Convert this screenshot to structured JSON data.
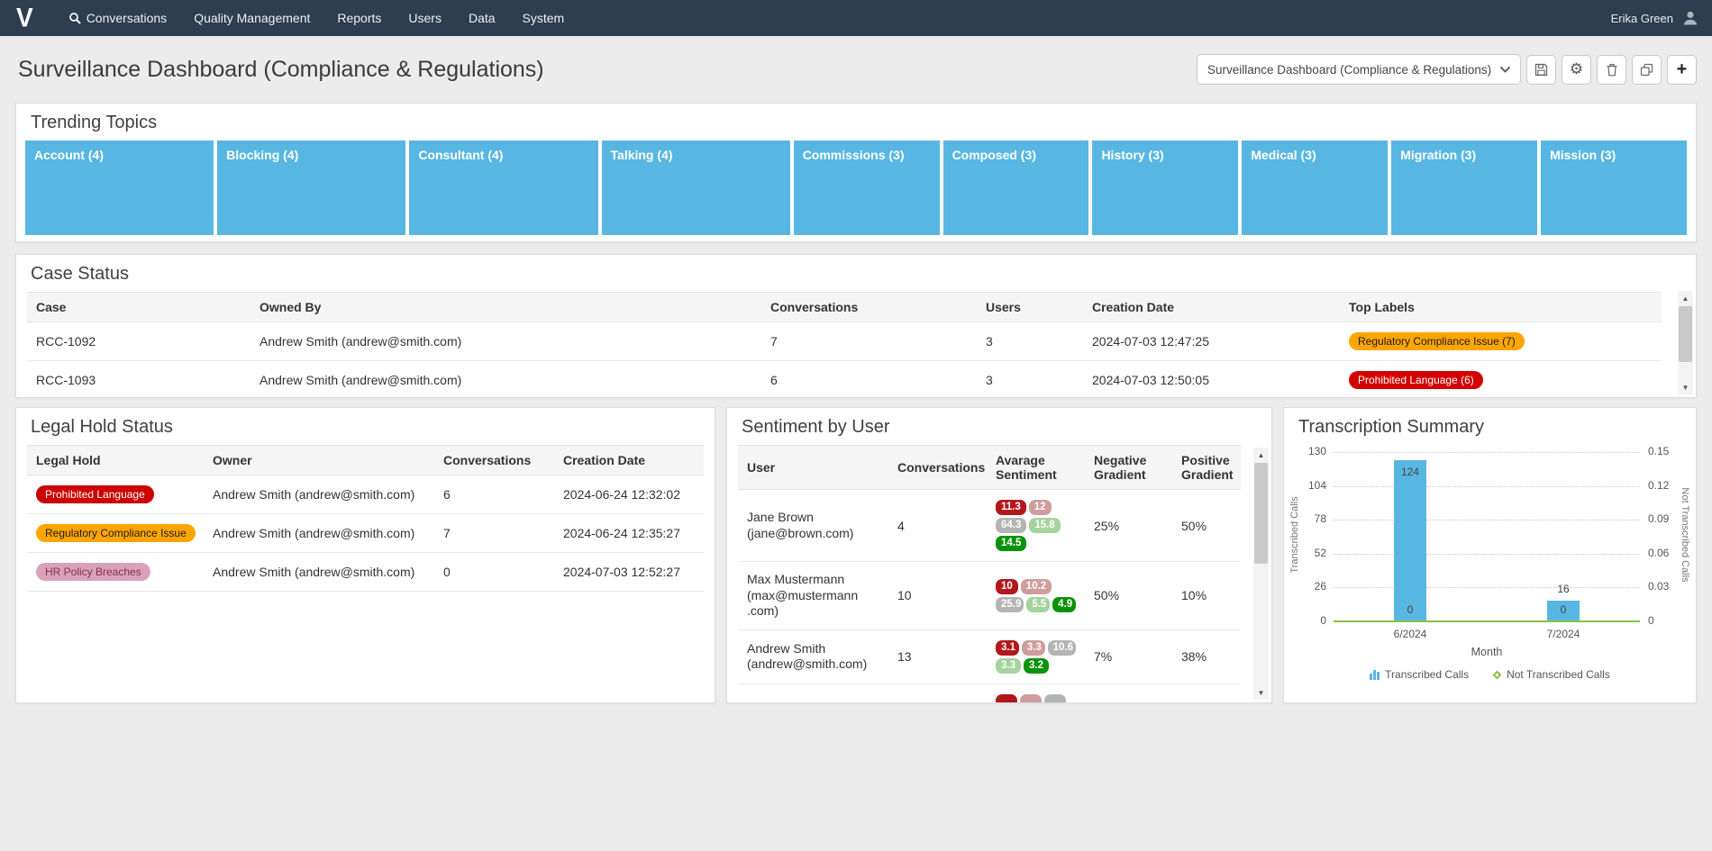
{
  "navbar": {
    "logo": "V",
    "items": [
      "Conversations",
      "Quality Management",
      "Reports",
      "Users",
      "Data",
      "System"
    ],
    "user_name": "Erika Green"
  },
  "header": {
    "title": "Surveillance Dashboard (Compliance & Regulations)",
    "dashboard_select_value": "Surveillance Dashboard (Compliance & Regulations)",
    "toolbar_icons": [
      "save-floppy",
      "gear",
      "trash",
      "copy",
      "plus"
    ]
  },
  "trending_topics": {
    "title": "Trending Topics",
    "tile_color": "#58b7e2",
    "topics": [
      {
        "label": "Account (4)",
        "weight": 4
      },
      {
        "label": "Blocking (4)",
        "weight": 4
      },
      {
        "label": "Consultant (4)",
        "weight": 4
      },
      {
        "label": "Talking (4)",
        "weight": 4
      },
      {
        "label": "Commissions (3)",
        "weight": 3
      },
      {
        "label": "Composed (3)",
        "weight": 3
      },
      {
        "label": "History (3)",
        "weight": 3
      },
      {
        "label": "Medical (3)",
        "weight": 3
      },
      {
        "label": "Migration (3)",
        "weight": 3
      },
      {
        "label": "Mission (3)",
        "weight": 3
      }
    ]
  },
  "case_status": {
    "title": "Case Status",
    "columns": [
      "Case",
      "Owned By",
      "Conversations",
      "Users",
      "Creation Date",
      "Top Labels"
    ],
    "rows": [
      {
        "case": "RCC-1092",
        "owned_by": "Andrew Smith (andrew@smith.com)",
        "conversations": "7",
        "users": "3",
        "creation_date": "2024-07-03 12:47:25",
        "top_label": {
          "text": "Regulatory Compliance Issue (7)",
          "bg": "#ffa500",
          "fg": "#1c1c1c"
        }
      },
      {
        "case": "RCC-1093",
        "owned_by": "Andrew Smith (andrew@smith.com)",
        "conversations": "6",
        "users": "3",
        "creation_date": "2024-07-03 12:50:05",
        "top_label": {
          "text": "Prohibited Language (6)",
          "bg": "#d40000",
          "fg": "#ffffff"
        }
      }
    ]
  },
  "legal_hold": {
    "title": "Legal Hold Status",
    "columns": [
      "Legal Hold",
      "Owner",
      "Conversations",
      "Creation Date"
    ],
    "rows": [
      {
        "badge": {
          "text": "Prohibited Language",
          "bg": "#cc0000",
          "fg": "#ffffff"
        },
        "owner": "Andrew Smith (andrew@smith.com)",
        "conversations": "6",
        "creation_date": "2024-06-24 12:32:02"
      },
      {
        "badge": {
          "text": "Regulatory Compliance Issue",
          "bg": "#ffa500",
          "fg": "#1c1c1c"
        },
        "owner": "Andrew Smith (andrew@smith.com)",
        "conversations": "7",
        "creation_date": "2024-06-24 12:35:27"
      },
      {
        "badge": {
          "text": "HR Policy Breaches",
          "bg": "#d7a3ba",
          "fg": "#8c2f50"
        },
        "owner": "Andrew Smith (andrew@smith.com)",
        "conversations": "0",
        "creation_date": "2024-07-03 12:52:27"
      }
    ]
  },
  "sentiment": {
    "title": "Sentiment by User",
    "columns": [
      "User",
      "Conversations",
      "Avarage Sentiment",
      "Negative Gradient",
      "Positive Gradient"
    ],
    "badge_colors": {
      "darkred": "#b2181b",
      "rose": "#d09d9d",
      "gray": "#b4b4b4",
      "lightgreen": "#a5d39e",
      "green": "#0a930a"
    },
    "rows": [
      {
        "name": "Jane Brown",
        "email": "(jane@brown.com)",
        "conversations": "4",
        "badge_rows": [
          [
            {
              "value": "11.3",
              "color": "darkred"
            },
            {
              "value": "12",
              "color": "rose"
            }
          ],
          [
            {
              "value": "64.3",
              "color": "gray"
            },
            {
              "value": "15.8",
              "color": "lightgreen"
            }
          ],
          [
            {
              "value": "14.5",
              "color": "green"
            }
          ]
        ],
        "negative": "25%",
        "positive": "50%"
      },
      {
        "name": "Max Mustermann",
        "email": "(max@mustermann .com)",
        "conversations": "10",
        "badge_rows": [
          [
            {
              "value": "10",
              "color": "darkred"
            },
            {
              "value": "10.2",
              "color": "rose"
            }
          ],
          [
            {
              "value": "25.9",
              "color": "gray"
            },
            {
              "value": "5.5",
              "color": "lightgreen"
            },
            {
              "value": "4.9",
              "color": "green"
            }
          ]
        ],
        "negative": "50%",
        "positive": "10%"
      },
      {
        "name": "Andrew Smith",
        "email": "(andrew@smith.com)",
        "conversations": "13",
        "badge_rows": [
          [
            {
              "value": "3.1",
              "color": "darkred"
            },
            {
              "value": "3.3",
              "color": "rose"
            },
            {
              "value": "10.6",
              "color": "gray"
            }
          ],
          [
            {
              "value": "3.3",
              "color": "lightgreen"
            },
            {
              "value": "3.2",
              "color": "green"
            }
          ]
        ],
        "negative": "7%",
        "positive": "38%"
      }
    ],
    "partial_row": {
      "badge_rows": [
        [
          {
            "color": "darkred"
          },
          {
            "color": "rose"
          },
          {
            "color": "gray"
          }
        ]
      ]
    }
  },
  "transcription": {
    "title": "Transcription Summary",
    "chart_data": {
      "type": "bar",
      "categories": [
        "6/2024",
        "7/2024"
      ],
      "series": [
        {
          "name": "Transcribed Calls",
          "type": "bar",
          "color": "#58b7e2",
          "values": [
            124,
            16
          ]
        },
        {
          "name": "Not Transcribed Calls",
          "type": "line",
          "color": "#86c440",
          "values": [
            0,
            0
          ]
        }
      ],
      "xlabel": "Month",
      "left_axis": {
        "label": "Transcribed Calls",
        "ticks": [
          0,
          26,
          52,
          78,
          104,
          130
        ],
        "max": 130
      },
      "right_axis": {
        "label": "Not Transcribed Calls",
        "ticks": [
          0,
          0.03,
          0.06,
          0.09,
          0.12,
          0.15
        ],
        "max": 0.15
      },
      "grid": "dotted-horizontal",
      "legend_position": "bottom"
    }
  }
}
